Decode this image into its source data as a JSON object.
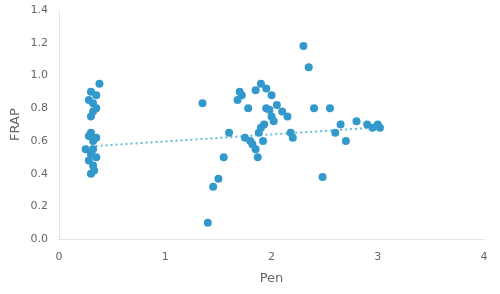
{
  "chart_data": {
    "type": "scatter",
    "xlabel": "Pen",
    "ylabel": "FRAP",
    "xlim": [
      0,
      4
    ],
    "ylim": [
      0,
      1.4
    ],
    "xticks": [
      0,
      1,
      2,
      3,
      4
    ],
    "yticks": [
      {
        "value": 0,
        "label": "0.0"
      },
      0.2,
      0.4,
      0.6,
      0.8,
      {
        "value": 1.0,
        "label": "1.0"
      },
      1.2,
      1.4
    ],
    "grid": false,
    "series": [
      {
        "type": "scatter",
        "marker": "circle",
        "color": "#3399CC",
        "x": [
          0.25,
          0.28,
          0.3,
          0.32,
          0.33,
          0.35,
          0.28,
          0.3,
          0.32,
          0.35,
          0.3,
          0.32,
          0.28,
          0.35,
          0.3,
          0.32,
          0.35,
          0.38,
          0.3,
          0.32,
          1.35,
          1.4,
          1.45,
          1.5,
          1.55,
          1.6,
          1.68,
          1.7,
          1.72,
          1.75,
          1.78,
          1.8,
          1.82,
          1.85,
          1.87,
          1.88,
          1.9,
          1.92,
          1.93,
          1.95,
          1.98,
          2.0,
          2.02,
          1.85,
          1.9,
          1.95,
          2.0,
          2.05,
          2.1,
          2.15,
          2.18,
          2.2,
          2.3,
          2.35,
          2.4,
          2.48,
          2.55,
          2.6,
          2.65,
          2.7,
          2.8,
          2.9,
          2.95,
          3.0,
          3.02
        ],
        "values": [
          0.55,
          0.48,
          0.52,
          0.45,
          0.42,
          0.5,
          0.63,
          0.65,
          0.6,
          0.62,
          0.75,
          0.78,
          0.85,
          0.88,
          0.9,
          0.83,
          0.8,
          0.95,
          0.4,
          0.55,
          0.83,
          0.1,
          0.32,
          0.37,
          0.5,
          0.65,
          0.85,
          0.9,
          0.88,
          0.62,
          0.8,
          0.6,
          0.58,
          0.55,
          0.5,
          0.65,
          0.68,
          0.6,
          0.7,
          0.8,
          0.79,
          0.75,
          0.72,
          0.91,
          0.95,
          0.92,
          0.88,
          0.82,
          0.78,
          0.75,
          0.65,
          0.62,
          1.18,
          1.05,
          0.8,
          0.38,
          0.8,
          0.65,
          0.7,
          0.6,
          0.72,
          0.7,
          0.68,
          0.7,
          0.68
        ]
      },
      {
        "type": "line",
        "line_style": "dotted",
        "color": "#66BBDD",
        "x": [
          0.25,
          3.05
        ],
        "values": [
          0.565,
          0.685
        ]
      }
    ]
  }
}
